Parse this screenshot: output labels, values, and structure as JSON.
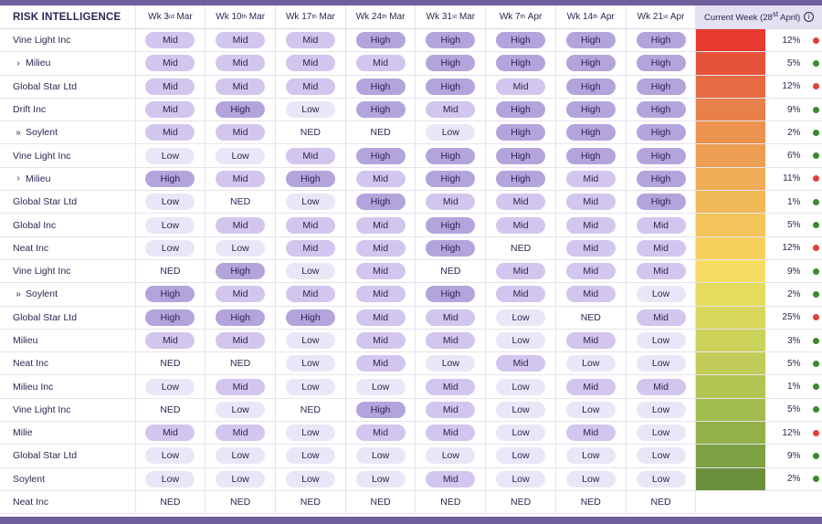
{
  "title": "RISK INTELLIGENCE",
  "weeks": [
    {
      "label": "Wk 3",
      "ord": "rd",
      "month": "Mar"
    },
    {
      "label": "Wk 10",
      "ord": "th",
      "month": "Mar"
    },
    {
      "label": "Wk 17",
      "ord": "th",
      "month": "Mar"
    },
    {
      "label": "Wk 24",
      "ord": "th",
      "month": "Mar"
    },
    {
      "label": "Wk 31",
      "ord": "st",
      "month": "Mar"
    },
    {
      "label": "Wk 7",
      "ord": "th",
      "month": "Apr"
    },
    {
      "label": "Wk 14",
      "ord": "th",
      "month": "Apr"
    },
    {
      "label": "Wk 21",
      "ord": "st",
      "month": "Apr"
    }
  ],
  "current_week": {
    "label_pre": "Current Week (28",
    "ord": "st",
    "label_post": " April)",
    "info_icon": "info-icon"
  },
  "colors": {
    "high": "#b3a4dc",
    "mid": "#d2c6ee",
    "low": "#ebe6f7",
    "red_dot": "#e0413a",
    "green_dot": "#3b8a2e",
    "frame": "#6f5f9c"
  },
  "heat_colors": [
    "#e83a2f",
    "#e5533a",
    "#e66a42",
    "#e7804a",
    "#ea924e",
    "#ec9e52",
    "#efac55",
    "#f1b857",
    "#f3c45a",
    "#f5d05d",
    "#f6dc60",
    "#e5dc5e",
    "#d8d85c",
    "#ccd25a",
    "#c0cc57",
    "#b2c452",
    "#a3bc4e",
    "#93b149",
    "#7ea243",
    "#6b913c",
    "#ffffff"
  ],
  "rows": [
    {
      "name": "Vine Light Inc",
      "prefix": "",
      "levels": [
        "Mid",
        "Mid",
        "Mid",
        "High",
        "High",
        "High",
        "High",
        "High"
      ],
      "pct": "12%",
      "status": "red"
    },
    {
      "name": "Milieu",
      "prefix": "›",
      "levels": [
        "Mid",
        "Mid",
        "Mid",
        "Mid",
        "High",
        "High",
        "High",
        "High"
      ],
      "pct": "5%",
      "status": "green"
    },
    {
      "name": "Global Star Ltd",
      "prefix": "",
      "levels": [
        "Mid",
        "Mid",
        "Mid",
        "High",
        "High",
        "Mid",
        "High",
        "High"
      ],
      "pct": "12%",
      "status": "red"
    },
    {
      "name": "Drift Inc",
      "prefix": "",
      "levels": [
        "Mid",
        "High",
        "Low",
        "High",
        "Mid",
        "High",
        "High",
        "High"
      ],
      "pct": "9%",
      "status": "green"
    },
    {
      "name": "Soylent",
      "prefix": "»",
      "levels": [
        "Mid",
        "Mid",
        "NED",
        "NED",
        "Low",
        "High",
        "High",
        "High"
      ],
      "pct": "2%",
      "status": "green"
    },
    {
      "name": "Vine Light Inc",
      "prefix": "",
      "levels": [
        "Low",
        "Low",
        "Mid",
        "High",
        "High",
        "High",
        "High",
        "High"
      ],
      "pct": "6%",
      "status": "green"
    },
    {
      "name": "Milieu",
      "prefix": "›",
      "levels": [
        "High",
        "Mid",
        "High",
        "Mid",
        "High",
        "High",
        "Mid",
        "High"
      ],
      "pct": "11%",
      "status": "red"
    },
    {
      "name": "Global Star Ltd",
      "prefix": "",
      "levels": [
        "Low",
        "NED",
        "Low",
        "High",
        "Mid",
        "Mid",
        "Mid",
        "High"
      ],
      "pct": "1%",
      "status": "green"
    },
    {
      "name": "Global Inc",
      "prefix": "",
      "levels": [
        "Low",
        "Mid",
        "Mid",
        "Mid",
        "High",
        "Mid",
        "Mid",
        "Mid"
      ],
      "pct": "5%",
      "status": "green"
    },
    {
      "name": "Neat Inc",
      "prefix": "",
      "levels": [
        "Low",
        "Low",
        "Mid",
        "Mid",
        "High",
        "NED",
        "Mid",
        "Mid"
      ],
      "pct": "12%",
      "status": "red"
    },
    {
      "name": "Vine Light Inc",
      "prefix": "",
      "levels": [
        "NED",
        "High",
        "Low",
        "Mid",
        "NED",
        "Mid",
        "Mid",
        "Mid"
      ],
      "pct": "9%",
      "status": "green"
    },
    {
      "name": "Soylent",
      "prefix": "»",
      "levels": [
        "High",
        "Mid",
        "Mid",
        "Mid",
        "High",
        "Mid",
        "Mid",
        "Low"
      ],
      "pct": "2%",
      "status": "green"
    },
    {
      "name": "Global Star Ltd",
      "prefix": "",
      "levels": [
        "High",
        "High",
        "High",
        "Mid",
        "Mid",
        "Low",
        "NED",
        "Mid"
      ],
      "pct": "25%",
      "status": "red"
    },
    {
      "name": "Milieu",
      "prefix": "",
      "levels": [
        "Mid",
        "Mid",
        "Low",
        "Mid",
        "Mid",
        "Low",
        "Mid",
        "Low"
      ],
      "pct": "3%",
      "status": "green"
    },
    {
      "name": "Neat Inc",
      "prefix": "",
      "levels": [
        "NED",
        "NED",
        "Low",
        "Mid",
        "Low",
        "Mid",
        "Low",
        "Low"
      ],
      "pct": "5%",
      "status": "green"
    },
    {
      "name": "Milieu Inc",
      "prefix": "",
      "levels": [
        "Low",
        "Mid",
        "Low",
        "Low",
        "Mid",
        "Low",
        "Mid",
        "Mid"
      ],
      "pct": "1%",
      "status": "green"
    },
    {
      "name": "Vine Light Inc",
      "prefix": "",
      "levels": [
        "NED",
        "Low",
        "NED",
        "High",
        "Mid",
        "Low",
        "Low",
        "Low"
      ],
      "pct": "5%",
      "status": "green"
    },
    {
      "name": "Milie",
      "prefix": "",
      "levels": [
        "Mid",
        "Mid",
        "Low",
        "Mid",
        "Mid",
        "Low",
        "Mid",
        "Low"
      ],
      "pct": "12%",
      "status": "red"
    },
    {
      "name": "Global Star Ltd",
      "prefix": "",
      "levels": [
        "Low",
        "Low",
        "Low",
        "Low",
        "Low",
        "Low",
        "Low",
        "Low"
      ],
      "pct": "9%",
      "status": "green"
    },
    {
      "name": "Soylent",
      "prefix": "",
      "levels": [
        "Low",
        "Low",
        "Low",
        "Low",
        "Mid",
        "Low",
        "Low",
        "Low"
      ],
      "pct": "2%",
      "status": "green"
    },
    {
      "name": "Neat Inc",
      "prefix": "",
      "levels": [
        "NED",
        "NED",
        "NED",
        "NED",
        "NED",
        "NED",
        "NED",
        "NED"
      ],
      "pct": "",
      "status": ""
    }
  ]
}
